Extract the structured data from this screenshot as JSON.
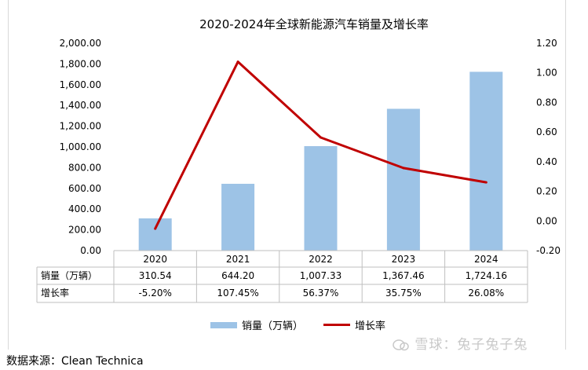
{
  "chart_data": {
    "type": "bar",
    "title": "2020-2024年全球新能源汽车销量及增长率",
    "categories": [
      "2020",
      "2021",
      "2022",
      "2023",
      "2024"
    ],
    "series": [
      {
        "name": "销量（万辆）",
        "type": "bar",
        "axis": "left",
        "color": "#9dc3e6",
        "values": [
          310.54,
          644.2,
          1007.33,
          1367.46,
          1724.16
        ]
      },
      {
        "name": "增长率",
        "type": "line",
        "axis": "right",
        "color": "#c00000",
        "values": [
          -0.052,
          1.0745,
          0.5637,
          0.3575,
          0.2608
        ]
      }
    ],
    "ylim_left": [
      0,
      2000
    ],
    "yticks_left": [
      "0.00",
      "200.00",
      "400.00",
      "600.00",
      "800.00",
      "1,000.00",
      "1,200.00",
      "1,400.00",
      "1,600.00",
      "1,800.00",
      "2,000.00"
    ],
    "ylim_right": [
      -0.2,
      1.2
    ],
    "yticks_right": [
      "-0.20",
      "0.00",
      "0.20",
      "0.40",
      "0.60",
      "0.80",
      "1.00",
      "1.20"
    ],
    "grid": false,
    "legend_position": "bottom",
    "data_table": {
      "rows": [
        {
          "label": "销量（万辆）",
          "values": [
            "310.54",
            "644.20",
            "1,007.33",
            "1,367.46",
            "1,724.16"
          ]
        },
        {
          "label": "增长率",
          "values": [
            "-5.20%",
            "107.45%",
            "56.37%",
            "35.75%",
            "26.08%"
          ]
        }
      ]
    }
  },
  "source_text": "数据来源：Clean Technica",
  "watermark_text": "雪球：兔子兔子兔"
}
